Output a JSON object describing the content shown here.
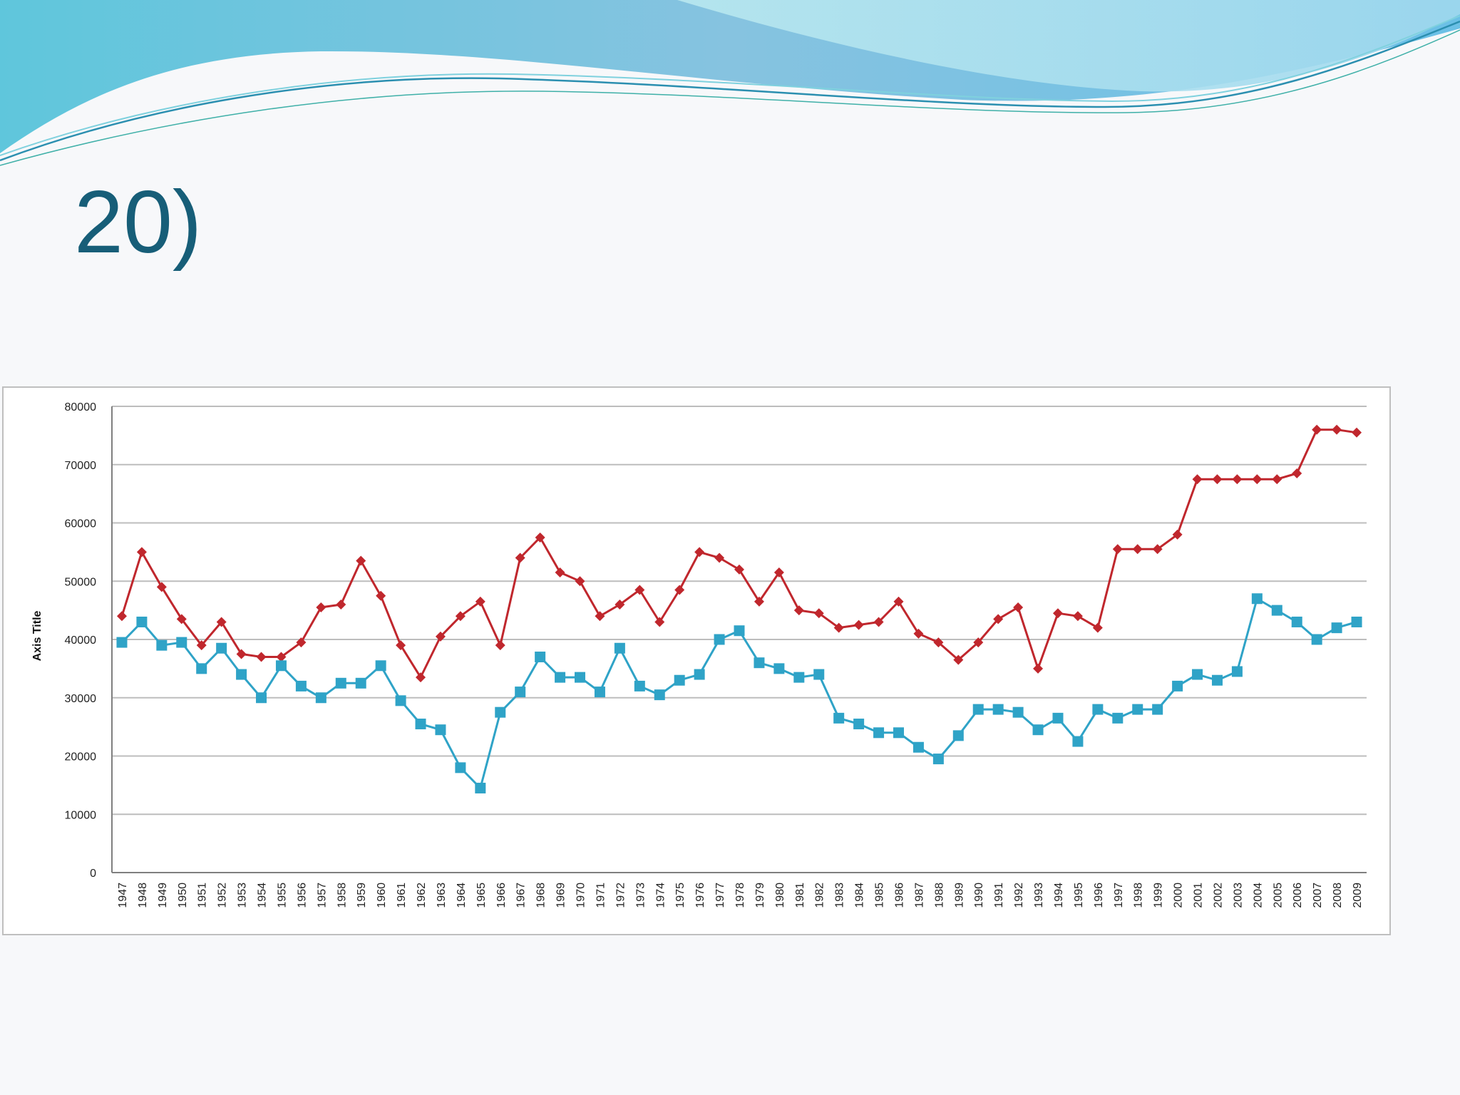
{
  "slide": {
    "title": "20)"
  },
  "colors": {
    "title": "#175e78",
    "series_1": "#c0272d",
    "series_2": "#2fa3c7",
    "gridline": "#bdbdbd"
  },
  "chart_data": {
    "type": "line",
    "title": "",
    "xlabel": "",
    "ylabel": "Axis Title",
    "ylim": [
      0,
      80000
    ],
    "yticks": [
      0,
      10000,
      20000,
      30000,
      40000,
      50000,
      60000,
      70000,
      80000
    ],
    "grid": true,
    "legend": "none",
    "x": [
      "1947",
      "1948",
      "1949",
      "1950",
      "1951",
      "1952",
      "1953",
      "1954",
      "1955",
      "1956",
      "1957",
      "1958",
      "1959",
      "1960",
      "1961",
      "1962",
      "1963",
      "1964",
      "1965",
      "1966",
      "1967",
      "1968",
      "1969",
      "1970",
      "1971",
      "1972",
      "1973",
      "1974",
      "1975",
      "1976",
      "1977",
      "1978",
      "1979",
      "1980",
      "1981",
      "1982",
      "1983",
      "1984",
      "1985",
      "1986",
      "1987",
      "1988",
      "1989",
      "1990",
      "1991",
      "1992",
      "1993",
      "1994",
      "1995",
      "1996",
      "1997",
      "1998",
      "1999",
      "2000",
      "2001",
      "2002",
      "2003",
      "2004",
      "2005",
      "2006",
      "2007",
      "2008",
      "2009"
    ],
    "series": [
      {
        "marker": "diamond",
        "color": "#c0272d",
        "values": [
          44000,
          55000,
          49000,
          43500,
          39000,
          43000,
          37500,
          37000,
          37000,
          39500,
          45500,
          46000,
          53500,
          47500,
          39000,
          33500,
          40500,
          44000,
          46500,
          39000,
          54000,
          57500,
          51500,
          50000,
          44000,
          46000,
          48500,
          43000,
          48500,
          55000,
          54000,
          52000,
          46500,
          51500,
          45000,
          44500,
          42000,
          42500,
          43000,
          46500,
          41000,
          39500,
          36500,
          39500,
          43500,
          45500,
          35000,
          44500,
          44000,
          42000,
          55500,
          55500,
          55500,
          58000,
          67500,
          67500,
          67500,
          67500,
          67500,
          68500,
          76000,
          76000,
          75500
        ]
      },
      {
        "marker": "square",
        "color": "#2fa3c7",
        "values": [
          39500,
          43000,
          39000,
          39500,
          35000,
          38500,
          34000,
          30000,
          35500,
          32000,
          30000,
          32500,
          32500,
          35500,
          29500,
          25500,
          24500,
          18000,
          14500,
          27500,
          31000,
          37000,
          33500,
          33500,
          31000,
          38500,
          32000,
          30500,
          33000,
          34000,
          40000,
          41500,
          36000,
          35000,
          33500,
          34000,
          26500,
          25500,
          24000,
          24000,
          21500,
          19500,
          23500,
          28000,
          28000,
          27500,
          24500,
          26500,
          22500,
          28000,
          26500,
          28000,
          28000,
          32000,
          34000,
          33000,
          34500,
          47000,
          45000,
          43000,
          40000,
          42000,
          43000
        ]
      }
    ]
  }
}
